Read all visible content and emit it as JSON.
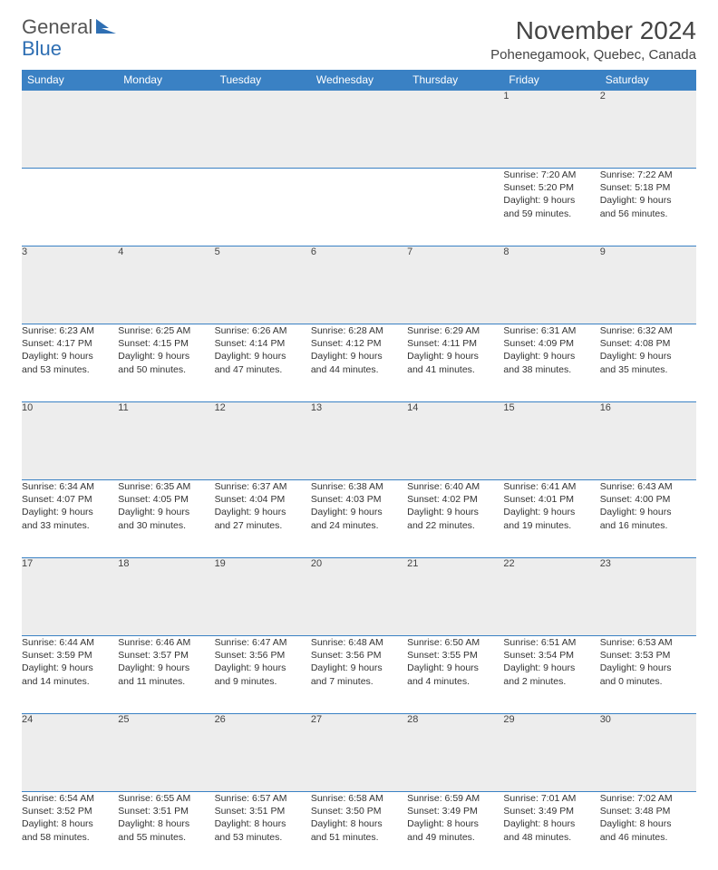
{
  "logo": {
    "text1": "General",
    "text2": "Blue"
  },
  "title": "November 2024",
  "location": "Pohenegamook, Quebec, Canada",
  "colors": {
    "header_bg": "#3a81c4",
    "header_text": "#ffffff",
    "border": "#3a81c4",
    "daynum_bg": "#ededed",
    "logo_gray": "#555555",
    "logo_blue": "#2f6fb3"
  },
  "typography": {
    "title_fontsize": 28,
    "location_fontsize": 15,
    "header_fontsize": 12,
    "daynum_fontsize": 11,
    "cell_fontsize": 10.5
  },
  "weekdays": [
    "Sunday",
    "Monday",
    "Tuesday",
    "Wednesday",
    "Thursday",
    "Friday",
    "Saturday"
  ],
  "weeks": [
    [
      null,
      null,
      null,
      null,
      null,
      {
        "n": "1",
        "sr": "Sunrise: 7:20 AM",
        "ss": "Sunset: 5:20 PM",
        "d1": "Daylight: 9 hours",
        "d2": "and 59 minutes."
      },
      {
        "n": "2",
        "sr": "Sunrise: 7:22 AM",
        "ss": "Sunset: 5:18 PM",
        "d1": "Daylight: 9 hours",
        "d2": "and 56 minutes."
      }
    ],
    [
      {
        "n": "3",
        "sr": "Sunrise: 6:23 AM",
        "ss": "Sunset: 4:17 PM",
        "d1": "Daylight: 9 hours",
        "d2": "and 53 minutes."
      },
      {
        "n": "4",
        "sr": "Sunrise: 6:25 AM",
        "ss": "Sunset: 4:15 PM",
        "d1": "Daylight: 9 hours",
        "d2": "and 50 minutes."
      },
      {
        "n": "5",
        "sr": "Sunrise: 6:26 AM",
        "ss": "Sunset: 4:14 PM",
        "d1": "Daylight: 9 hours",
        "d2": "and 47 minutes."
      },
      {
        "n": "6",
        "sr": "Sunrise: 6:28 AM",
        "ss": "Sunset: 4:12 PM",
        "d1": "Daylight: 9 hours",
        "d2": "and 44 minutes."
      },
      {
        "n": "7",
        "sr": "Sunrise: 6:29 AM",
        "ss": "Sunset: 4:11 PM",
        "d1": "Daylight: 9 hours",
        "d2": "and 41 minutes."
      },
      {
        "n": "8",
        "sr": "Sunrise: 6:31 AM",
        "ss": "Sunset: 4:09 PM",
        "d1": "Daylight: 9 hours",
        "d2": "and 38 minutes."
      },
      {
        "n": "9",
        "sr": "Sunrise: 6:32 AM",
        "ss": "Sunset: 4:08 PM",
        "d1": "Daylight: 9 hours",
        "d2": "and 35 minutes."
      }
    ],
    [
      {
        "n": "10",
        "sr": "Sunrise: 6:34 AM",
        "ss": "Sunset: 4:07 PM",
        "d1": "Daylight: 9 hours",
        "d2": "and 33 minutes."
      },
      {
        "n": "11",
        "sr": "Sunrise: 6:35 AM",
        "ss": "Sunset: 4:05 PM",
        "d1": "Daylight: 9 hours",
        "d2": "and 30 minutes."
      },
      {
        "n": "12",
        "sr": "Sunrise: 6:37 AM",
        "ss": "Sunset: 4:04 PM",
        "d1": "Daylight: 9 hours",
        "d2": "and 27 minutes."
      },
      {
        "n": "13",
        "sr": "Sunrise: 6:38 AM",
        "ss": "Sunset: 4:03 PM",
        "d1": "Daylight: 9 hours",
        "d2": "and 24 minutes."
      },
      {
        "n": "14",
        "sr": "Sunrise: 6:40 AM",
        "ss": "Sunset: 4:02 PM",
        "d1": "Daylight: 9 hours",
        "d2": "and 22 minutes."
      },
      {
        "n": "15",
        "sr": "Sunrise: 6:41 AM",
        "ss": "Sunset: 4:01 PM",
        "d1": "Daylight: 9 hours",
        "d2": "and 19 minutes."
      },
      {
        "n": "16",
        "sr": "Sunrise: 6:43 AM",
        "ss": "Sunset: 4:00 PM",
        "d1": "Daylight: 9 hours",
        "d2": "and 16 minutes."
      }
    ],
    [
      {
        "n": "17",
        "sr": "Sunrise: 6:44 AM",
        "ss": "Sunset: 3:59 PM",
        "d1": "Daylight: 9 hours",
        "d2": "and 14 minutes."
      },
      {
        "n": "18",
        "sr": "Sunrise: 6:46 AM",
        "ss": "Sunset: 3:57 PM",
        "d1": "Daylight: 9 hours",
        "d2": "and 11 minutes."
      },
      {
        "n": "19",
        "sr": "Sunrise: 6:47 AM",
        "ss": "Sunset: 3:56 PM",
        "d1": "Daylight: 9 hours",
        "d2": "and 9 minutes."
      },
      {
        "n": "20",
        "sr": "Sunrise: 6:48 AM",
        "ss": "Sunset: 3:56 PM",
        "d1": "Daylight: 9 hours",
        "d2": "and 7 minutes."
      },
      {
        "n": "21",
        "sr": "Sunrise: 6:50 AM",
        "ss": "Sunset: 3:55 PM",
        "d1": "Daylight: 9 hours",
        "d2": "and 4 minutes."
      },
      {
        "n": "22",
        "sr": "Sunrise: 6:51 AM",
        "ss": "Sunset: 3:54 PM",
        "d1": "Daylight: 9 hours",
        "d2": "and 2 minutes."
      },
      {
        "n": "23",
        "sr": "Sunrise: 6:53 AM",
        "ss": "Sunset: 3:53 PM",
        "d1": "Daylight: 9 hours",
        "d2": "and 0 minutes."
      }
    ],
    [
      {
        "n": "24",
        "sr": "Sunrise: 6:54 AM",
        "ss": "Sunset: 3:52 PM",
        "d1": "Daylight: 8 hours",
        "d2": "and 58 minutes."
      },
      {
        "n": "25",
        "sr": "Sunrise: 6:55 AM",
        "ss": "Sunset: 3:51 PM",
        "d1": "Daylight: 8 hours",
        "d2": "and 55 minutes."
      },
      {
        "n": "26",
        "sr": "Sunrise: 6:57 AM",
        "ss": "Sunset: 3:51 PM",
        "d1": "Daylight: 8 hours",
        "d2": "and 53 minutes."
      },
      {
        "n": "27",
        "sr": "Sunrise: 6:58 AM",
        "ss": "Sunset: 3:50 PM",
        "d1": "Daylight: 8 hours",
        "d2": "and 51 minutes."
      },
      {
        "n": "28",
        "sr": "Sunrise: 6:59 AM",
        "ss": "Sunset: 3:49 PM",
        "d1": "Daylight: 8 hours",
        "d2": "and 49 minutes."
      },
      {
        "n": "29",
        "sr": "Sunrise: 7:01 AM",
        "ss": "Sunset: 3:49 PM",
        "d1": "Daylight: 8 hours",
        "d2": "and 48 minutes."
      },
      {
        "n": "30",
        "sr": "Sunrise: 7:02 AM",
        "ss": "Sunset: 3:48 PM",
        "d1": "Daylight: 8 hours",
        "d2": "and 46 minutes."
      }
    ]
  ]
}
